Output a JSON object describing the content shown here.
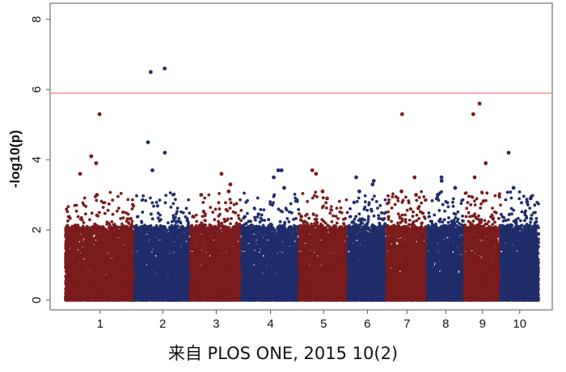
{
  "chart_data": {
    "type": "scatter",
    "title": "",
    "xlabel": "",
    "ylabel": "-log10(p)",
    "ylim": [
      0,
      8
    ],
    "yticks": [
      0,
      2,
      4,
      6,
      8
    ],
    "significance_threshold": 5.9,
    "threshold_color": "#f08080",
    "colors": [
      "#7a1c1c",
      "#1f2d6b"
    ],
    "chromosomes": [
      {
        "label": "1",
        "color": "#7a1c1c",
        "peak": 5.3,
        "top_hits": [
          4.1,
          3.9,
          3.6,
          3.0
        ]
      },
      {
        "label": "2",
        "color": "#1f2d6b",
        "peak": 6.6,
        "top_hits": [
          6.5,
          4.5,
          4.2,
          3.7
        ]
      },
      {
        "label": "3",
        "color": "#7a1c1c",
        "peak": 3.6,
        "top_hits": [
          3.3,
          3.1,
          3.0
        ]
      },
      {
        "label": "4",
        "color": "#1f2d6b",
        "peak": 3.7,
        "top_hits": [
          3.7,
          3.5,
          3.2
        ]
      },
      {
        "label": "5",
        "color": "#7a1c1c",
        "peak": 3.7,
        "top_hits": [
          3.6,
          3.1,
          2.9
        ]
      },
      {
        "label": "6",
        "color": "#1f2d6b",
        "peak": 3.5,
        "top_hits": [
          3.4,
          3.3,
          3.1
        ]
      },
      {
        "label": "7",
        "color": "#7a1c1c",
        "peak": 5.3,
        "top_hits": [
          3.5,
          3.1,
          3.0
        ]
      },
      {
        "label": "8",
        "color": "#1f2d6b",
        "peak": 3.5,
        "top_hits": [
          3.4,
          3.2,
          3.0
        ]
      },
      {
        "label": "9",
        "color": "#7a1c1c",
        "peak": 5.6,
        "top_hits": [
          5.3,
          3.9,
          3.5
        ]
      },
      {
        "label": "10",
        "color": "#1f2d6b",
        "peak": 4.2,
        "top_hits": [
          3.2,
          2.9,
          2.8
        ]
      }
    ]
  },
  "caption": "来自 PLOS ONE, 2015  10(2)"
}
